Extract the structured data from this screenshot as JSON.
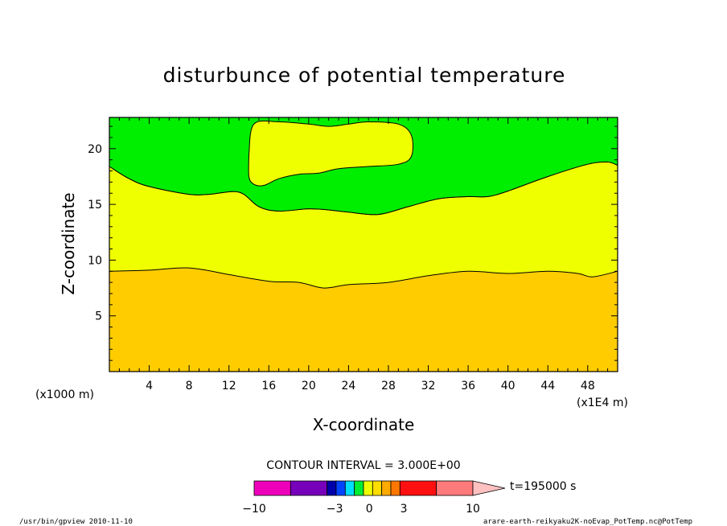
{
  "chart_data": {
    "type": "contour",
    "title": "disturbunce of potential temperature",
    "xlabel": "X-coordinate",
    "ylabel": "Z-coordinate",
    "x_tick_labels": [
      "4",
      "8",
      "12",
      "16",
      "20",
      "24",
      "28",
      "32",
      "36",
      "40",
      "44",
      "48"
    ],
    "y_tick_labels": [
      "5",
      "10",
      "15",
      "20"
    ],
    "x_ticks": [
      4,
      8,
      12,
      16,
      20,
      24,
      28,
      32,
      36,
      40,
      44,
      48
    ],
    "y_ticks": [
      5,
      10,
      15,
      20
    ],
    "xlim": [
      0,
      51
    ],
    "ylim": [
      0,
      22.8
    ],
    "x_unit_left": "(x1000 m)",
    "x_unit_right": "(x1E4 m)",
    "contour_interval": "CONTOUR INTERVAL = 3.000E+00",
    "time_label": "t=195000 s",
    "colorbar_labels": [
      {
        "text": "−10",
        "pos": 0
      },
      {
        "text": "−3",
        "pos": 0.3684
      },
      {
        "text": "0",
        "pos": 0.5263
      },
      {
        "text": "3",
        "pos": 0.6842
      },
      {
        "text": "10",
        "pos": 1.0
      }
    ],
    "colorbar_colors": [
      "#ee00bb",
      "#7700bb",
      "#0000aa",
      "#0044ff",
      "#00ddff",
      "#00ee33",
      "#f0ff00",
      "#ffdd00",
      "#ffaa00",
      "#ff7700",
      "#ff1010",
      "#ff7a7a",
      "#ffc0c0"
    ],
    "colorbar_widths": [
      2,
      2,
      0.5,
      0.5,
      0.5,
      0.5,
      0.5,
      0.5,
      0.5,
      0.5,
      2,
      2,
      1
    ],
    "regions": [
      {
        "name": "lower-band",
        "color": "#ffcc00"
      },
      {
        "name": "middle-band",
        "color": "#f0ff00"
      },
      {
        "name": "upper-band",
        "color": "#00ee00"
      },
      {
        "name": "upper-island",
        "color": "#f0ff00"
      }
    ],
    "lower_boundary": [
      [
        0,
        9.0
      ],
      [
        4,
        9.1
      ],
      [
        8,
        9.3
      ],
      [
        12,
        8.7
      ],
      [
        16,
        8.1
      ],
      [
        19,
        8.0
      ],
      [
        21.5,
        7.5
      ],
      [
        24,
        7.8
      ],
      [
        28,
        8.0
      ],
      [
        32,
        8.6
      ],
      [
        36,
        9.0
      ],
      [
        40,
        8.8
      ],
      [
        44,
        9.0
      ],
      [
        47,
        8.8
      ],
      [
        48.5,
        8.5
      ],
      [
        51,
        9.0
      ]
    ],
    "upper_boundary": [
      [
        0,
        18.4
      ],
      [
        2,
        17.3
      ],
      [
        4,
        16.6
      ],
      [
        8,
        15.9
      ],
      [
        10,
        15.9
      ],
      [
        13,
        16.1
      ],
      [
        15,
        14.8
      ],
      [
        17,
        14.4
      ],
      [
        20,
        14.6
      ],
      [
        22,
        14.5
      ],
      [
        24,
        14.3
      ],
      [
        27,
        14.1
      ],
      [
        30,
        14.8
      ],
      [
        33,
        15.5
      ],
      [
        36,
        15.7
      ],
      [
        38,
        15.7
      ],
      [
        40,
        16.2
      ],
      [
        44,
        17.5
      ],
      [
        48,
        18.6
      ],
      [
        50,
        18.8
      ],
      [
        51,
        18.5
      ]
    ],
    "island_boundary": [
      [
        14,
        19.5
      ],
      [
        14.5,
        22.2
      ],
      [
        17,
        22.4
      ],
      [
        20,
        22.2
      ],
      [
        22,
        22.0
      ],
      [
        24,
        22.2
      ],
      [
        26,
        22.4
      ],
      [
        29,
        22.2
      ],
      [
        30.3,
        21.2
      ],
      [
        30.3,
        19.3
      ],
      [
        29,
        18.6
      ],
      [
        26,
        18.4
      ],
      [
        23,
        18.2
      ],
      [
        21,
        17.8
      ],
      [
        19,
        17.7
      ],
      [
        17,
        17.3
      ],
      [
        15.5,
        16.7
      ],
      [
        14.5,
        16.8
      ],
      [
        14,
        17.5
      ]
    ]
  },
  "footer": {
    "left": "/usr/bin/gpview  2010-11-10",
    "right": "arare-earth-reikyaku2K-noEvap_PotTemp.nc@PotTemp"
  }
}
